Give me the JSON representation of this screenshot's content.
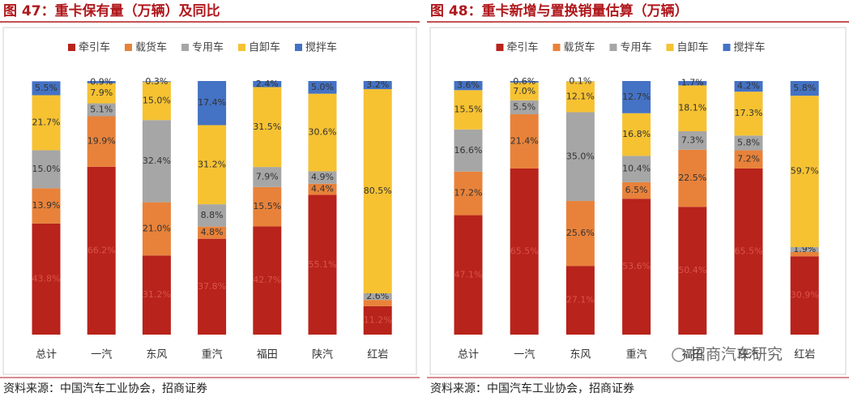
{
  "chart_data": [
    {
      "type": "stacked_bar",
      "title": "图 47：重卡保有量（万辆）及同比",
      "source": "资料来源：中国汽车工业协会，招商证券",
      "categories": [
        "总计",
        "一汽",
        "东风",
        "重汽",
        "福田",
        "陕汽",
        "红岩"
      ],
      "ylim": [
        0,
        100
      ],
      "series": [
        {
          "name": "牵引车",
          "color": "#b8231b",
          "values": [
            43.8,
            66.2,
            31.2,
            37.8,
            42.7,
            55.1,
            11.2
          ],
          "value_labels": [
            "43.8%",
            "66.2%",
            "31.2%",
            "37.8%",
            "42.7%",
            "55.1%",
            "11.2%"
          ]
        },
        {
          "name": "载货车",
          "color": "#e8823a",
          "values": [
            13.9,
            19.9,
            21.0,
            4.8,
            15.5,
            4.4,
            2.5
          ],
          "value_labels": [
            "13.9%",
            "19.9%",
            "21.0%",
            "4.8%",
            "15.5%",
            "4.4%",
            null
          ]
        },
        {
          "name": "专用车",
          "color": "#a6a6a6",
          "values": [
            15.0,
            5.1,
            32.4,
            8.8,
            7.9,
            4.9,
            2.6
          ],
          "value_labels": [
            "15.0%",
            "5.1%",
            "32.4%",
            "8.8%",
            "7.9%",
            "4.9%",
            "2.6%"
          ]
        },
        {
          "name": "自卸车",
          "color": "#f6c232",
          "values": [
            21.7,
            7.9,
            15.0,
            31.2,
            31.5,
            30.6,
            80.5
          ],
          "value_labels": [
            "21.7%",
            "7.9%",
            "15.0%",
            "31.2%",
            "31.5%",
            "30.6%",
            "80.5%"
          ]
        },
        {
          "name": "搅拌车",
          "color": "#4472c4",
          "values": [
            5.5,
            0.9,
            0.3,
            17.4,
            2.4,
            5.0,
            3.2
          ],
          "value_labels": [
            "5.5%",
            "0.9%",
            "0.3%",
            "17.4%",
            "2.4%",
            "5.0%",
            "3.2%"
          ]
        }
      ]
    },
    {
      "type": "stacked_bar",
      "title": "图 48：重卡新增与置换销量估算（万辆）",
      "source": "资料来源：中国汽车工业协会，招商证券",
      "watermark": "招商汽车研究",
      "categories": [
        "总计",
        "一汽",
        "东风",
        "重汽",
        "福田",
        "陕汽",
        "红岩"
      ],
      "ylim": [
        0,
        100
      ],
      "series": [
        {
          "name": "牵引车",
          "color": "#b8231b",
          "values": [
            47.1,
            65.5,
            27.1,
            53.6,
            50.4,
            65.5,
            30.9
          ],
          "value_labels": [
            "47.1%",
            "65.5%",
            "27.1%",
            "53.6%",
            "50.4%",
            "65.5%",
            "30.9%"
          ]
        },
        {
          "name": "载货车",
          "color": "#e8823a",
          "values": [
            17.2,
            21.4,
            25.6,
            6.5,
            22.5,
            7.2,
            1.7
          ],
          "value_labels": [
            "17.2%",
            "21.4%",
            "25.6%",
            "6.5%",
            "22.5%",
            "7.2%",
            null
          ]
        },
        {
          "name": "专用车",
          "color": "#a6a6a6",
          "values": [
            16.6,
            5.5,
            35.0,
            10.4,
            7.3,
            5.8,
            1.9
          ],
          "value_labels": [
            "16.6%",
            "5.5%",
            "35.0%",
            "10.4%",
            "7.3%",
            "5.8%",
            "1.9%"
          ]
        },
        {
          "name": "自卸车",
          "color": "#f6c232",
          "values": [
            15.5,
            7.0,
            12.1,
            16.8,
            18.1,
            17.3,
            59.7
          ],
          "value_labels": [
            "15.5%",
            "7.0%",
            "12.1%",
            "16.8%",
            "18.1%",
            "17.3%",
            "59.7%"
          ]
        },
        {
          "name": "搅拌车",
          "color": "#4472c4",
          "values": [
            3.6,
            0.6,
            0.1,
            12.7,
            1.7,
            4.2,
            5.8
          ],
          "value_labels": [
            "3.6%",
            "0.6%",
            "0.1%",
            "12.7%",
            "1.7%",
            "4.2%",
            "5.8%"
          ]
        }
      ]
    }
  ]
}
